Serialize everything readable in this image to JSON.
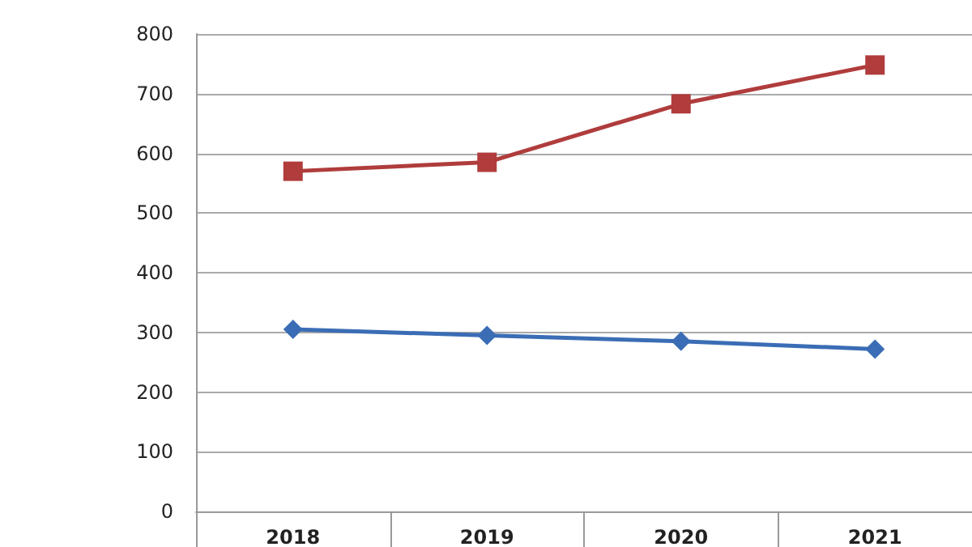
{
  "chart_data": {
    "type": "line",
    "categories": [
      "2018",
      "2019",
      "2020",
      "2021"
    ],
    "series": [
      {
        "color": "#b03c3c",
        "marker": "square",
        "values": [
          570,
          585,
          683,
          748
        ]
      },
      {
        "color": "#3a6db5",
        "marker": "diamond",
        "values": [
          305,
          295,
          285,
          272
        ]
      }
    ],
    "ylim": [
      0,
      800
    ],
    "yticks": [
      0,
      100,
      200,
      300,
      400,
      500,
      600,
      700,
      800
    ],
    "grid": "y",
    "line_style": "solid"
  }
}
